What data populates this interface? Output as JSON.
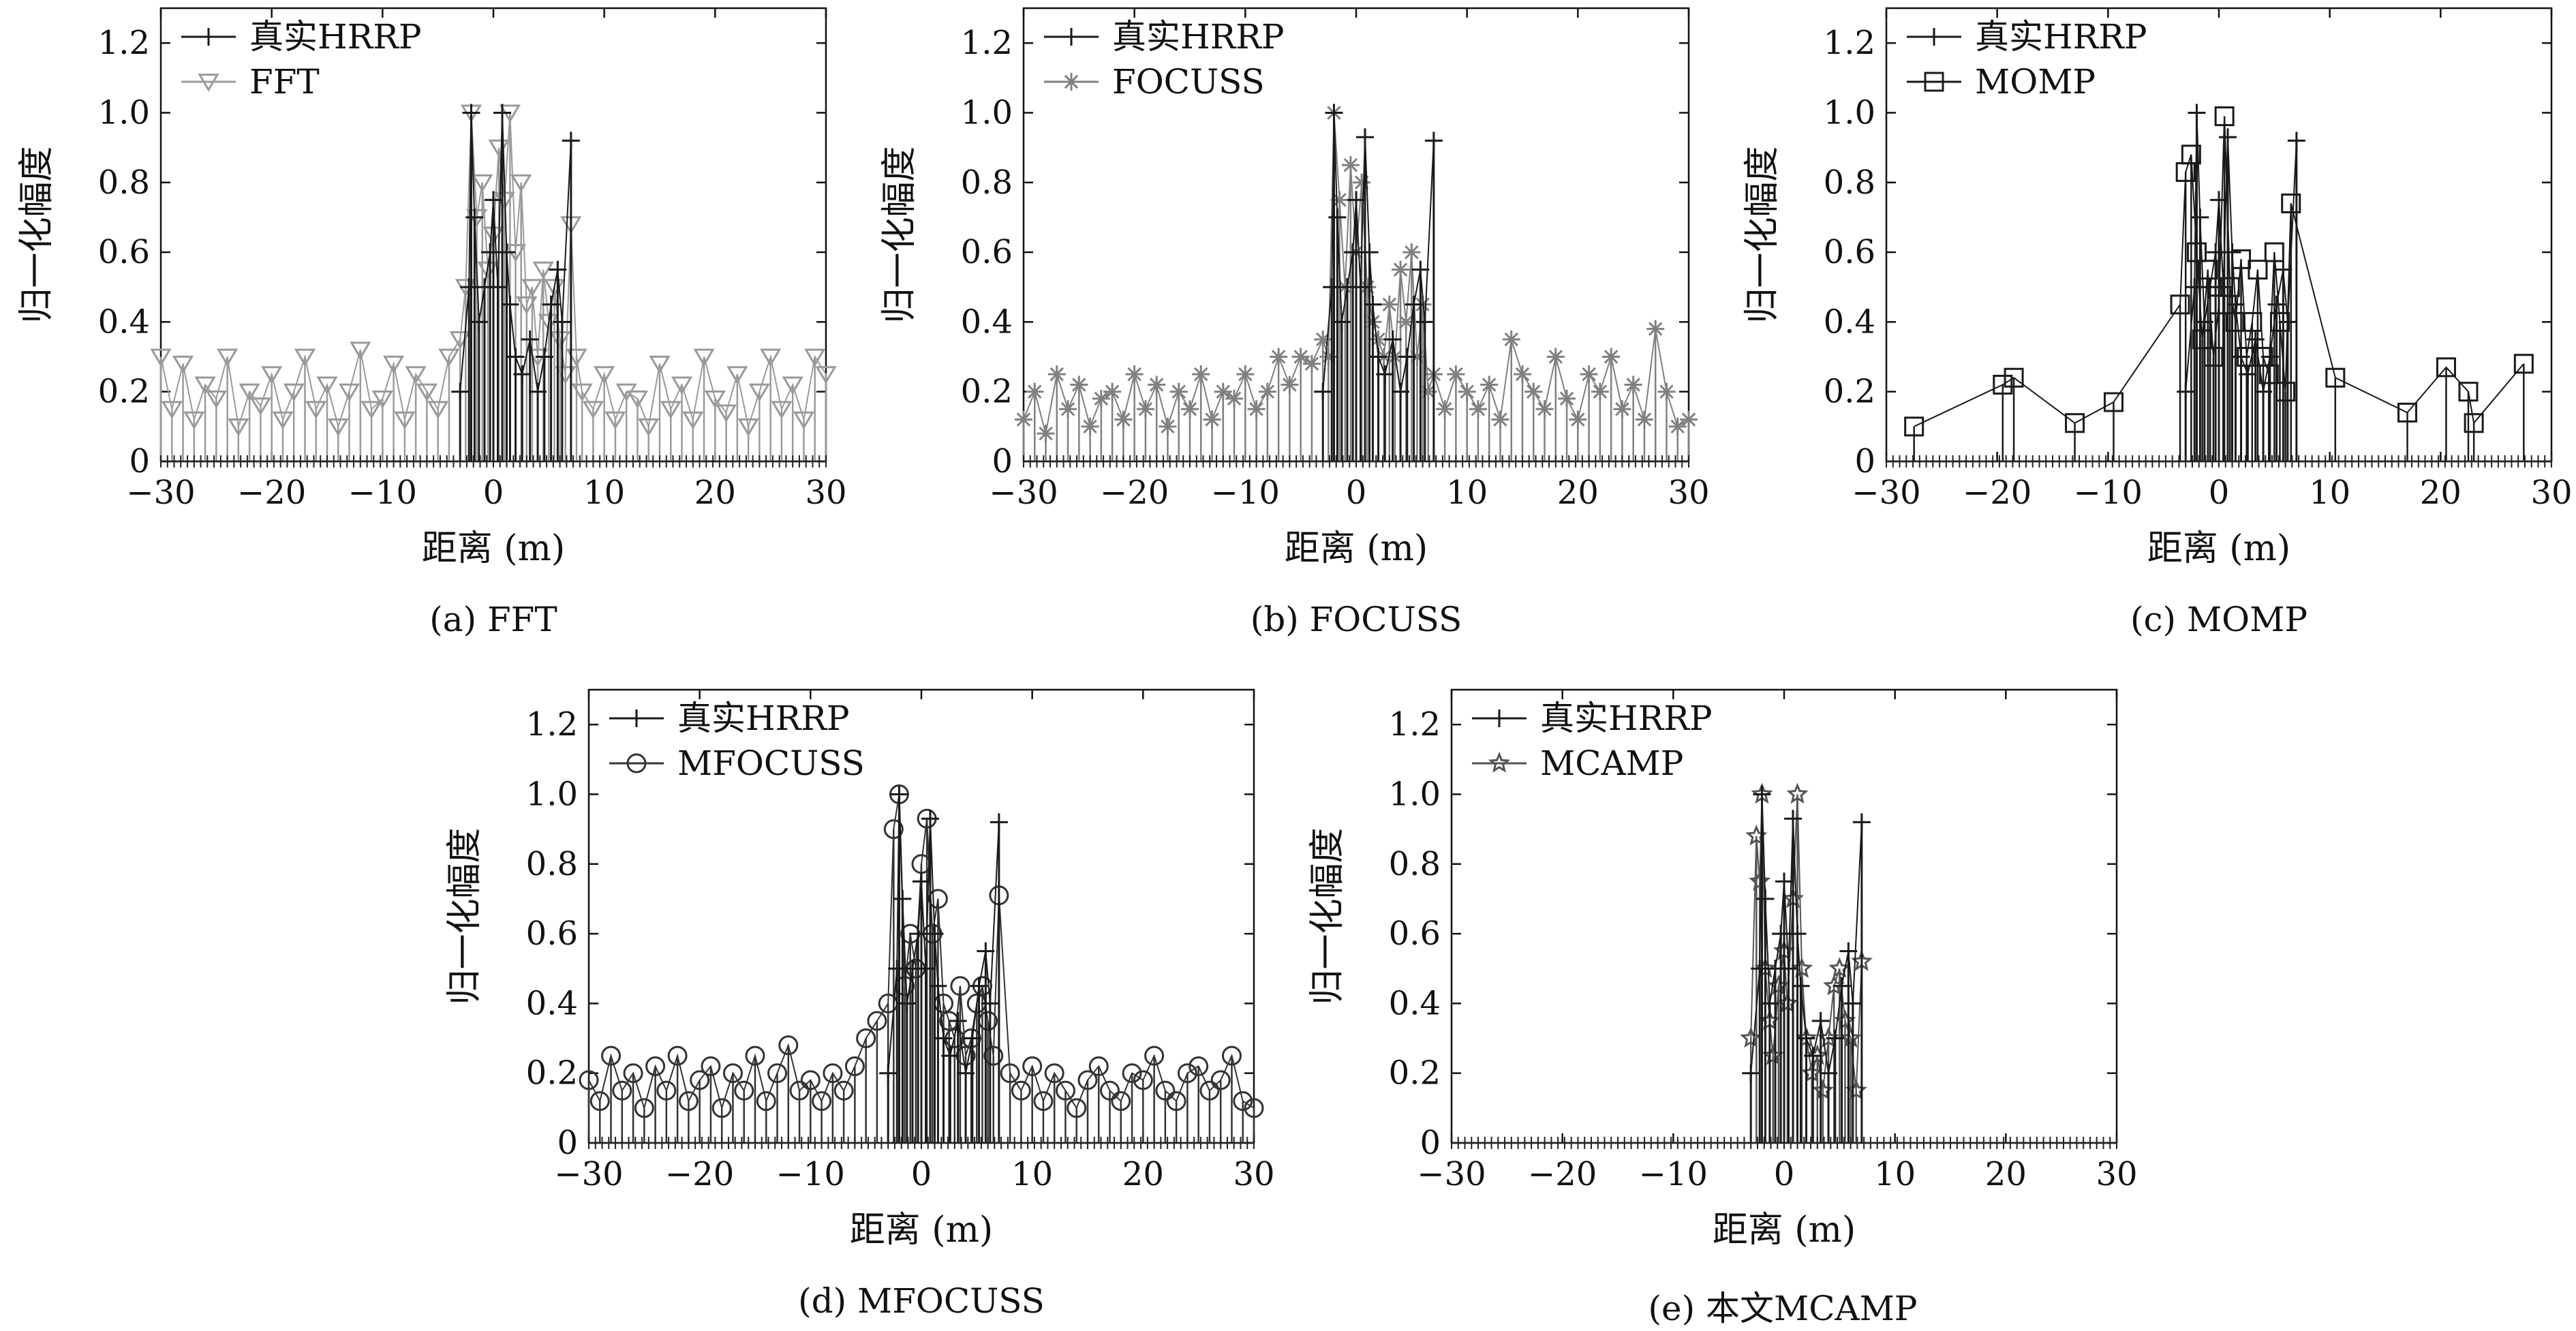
{
  "figure": {
    "captions": [
      "(a) FFT",
      "(b) FOCUSS",
      "(c) MOMP",
      "(d) MFOCUSS",
      "(e) 本文MCAMP"
    ]
  },
  "colors": {
    "true_hrrp": "#1a1a1a",
    "fft": "#9a9a9a",
    "focuss": "#808080",
    "momp": "#1a1a1a",
    "mfocuss": "#333333",
    "mcamp": "#555555"
  },
  "chart_data": [
    {
      "type": "line",
      "caption": "(a) FFT",
      "xlabel": "距离 (m)",
      "ylabel": "归一化幅度",
      "xlim": [
        -30,
        30
      ],
      "ylim": [
        0,
        1.3
      ],
      "xticks": [
        -30,
        -20,
        -10,
        0,
        10,
        20,
        30
      ],
      "xtick_labels": [
        "−30",
        "−20",
        "−10",
        "0",
        "10",
        "20",
        "30"
      ],
      "yticks": [
        0,
        0.2,
        0.4,
        0.6,
        0.8,
        1.0,
        1.2
      ],
      "ytick_labels": [
        "0",
        "0.2",
        "0.4",
        "0.6",
        "0.8",
        "1.0",
        "1.2"
      ],
      "legend": "top-left",
      "grid": false,
      "series": [
        {
          "name": "真实HRRP",
          "marker": "plus",
          "x": [
            -3,
            -2.2,
            -2,
            -1.7,
            -1.3,
            -0.8,
            -0.3,
            0,
            0.4,
            0.8,
            1.2,
            1.5,
            2,
            2.6,
            3.3,
            4,
            4.6,
            5.2,
            5.8,
            6.2,
            7
          ],
          "y": [
            0.2,
            0.5,
            1.0,
            0.7,
            0.4,
            0.5,
            0.6,
            0.75,
            0.5,
            1.0,
            0.6,
            0.45,
            0.3,
            0.25,
            0.35,
            0.2,
            0.3,
            0.45,
            0.55,
            0.4,
            0.92
          ]
        },
        {
          "name": "FFT",
          "marker": "triangle-down",
          "x": [
            -30,
            -29,
            -28,
            -27,
            -26,
            -25,
            -24,
            -23,
            -22,
            -21,
            -20,
            -19,
            -18,
            -17,
            -16,
            -15,
            -14,
            -13,
            -12,
            -11,
            -10,
            -9,
            -8,
            -7,
            -6,
            -5,
            -4,
            -3,
            -2.5,
            -2,
            -1.5,
            -1,
            -0.5,
            0,
            0.5,
            1,
            1.5,
            2,
            2.5,
            3,
            3.5,
            4,
            4.5,
            5,
            5.5,
            6,
            6.5,
            7,
            7.5,
            8,
            9,
            10,
            11,
            12,
            13,
            14,
            15,
            16,
            17,
            18,
            19,
            20,
            21,
            22,
            23,
            24,
            25,
            26,
            27,
            28,
            29,
            30
          ],
          "y": [
            0.3,
            0.15,
            0.28,
            0.12,
            0.22,
            0.18,
            0.3,
            0.1,
            0.2,
            0.16,
            0.25,
            0.12,
            0.2,
            0.3,
            0.15,
            0.22,
            0.1,
            0.2,
            0.32,
            0.15,
            0.18,
            0.28,
            0.12,
            0.25,
            0.2,
            0.15,
            0.3,
            0.35,
            0.5,
            1.0,
            0.7,
            0.8,
            0.55,
            0.65,
            0.9,
            0.75,
            1.0,
            0.6,
            0.8,
            0.45,
            0.5,
            0.3,
            0.55,
            0.4,
            0.5,
            0.35,
            0.25,
            0.68,
            0.3,
            0.2,
            0.15,
            0.25,
            0.12,
            0.2,
            0.18,
            0.1,
            0.28,
            0.15,
            0.22,
            0.12,
            0.3,
            0.18,
            0.14,
            0.25,
            0.1,
            0.2,
            0.3,
            0.15,
            0.22,
            0.12,
            0.3,
            0.25
          ]
        }
      ]
    },
    {
      "type": "line",
      "caption": "(b) FOCUSS",
      "xlabel": "距离 (m)",
      "ylabel": "归一化幅度",
      "xlim": [
        -30,
        30
      ],
      "ylim": [
        0,
        1.3
      ],
      "xticks": [
        -30,
        -20,
        -10,
        0,
        10,
        20,
        30
      ],
      "xtick_labels": [
        "−30",
        "−20",
        "−10",
        "0",
        "10",
        "20",
        "30"
      ],
      "yticks": [
        0,
        0.2,
        0.4,
        0.6,
        0.8,
        1.0,
        1.2
      ],
      "ytick_labels": [
        "0",
        "0.2",
        "0.4",
        "0.6",
        "0.8",
        "1.0",
        "1.2"
      ],
      "legend": "top-left",
      "grid": false,
      "series": [
        {
          "name": "真实HRRP",
          "marker": "plus",
          "x": [
            -3,
            -2.2,
            -2,
            -1.7,
            -1.3,
            -0.8,
            -0.3,
            0,
            0.4,
            0.8,
            1.2,
            1.5,
            2,
            2.6,
            3.3,
            4,
            4.6,
            5.2,
            5.8,
            6.2,
            7
          ],
          "y": [
            0.2,
            0.5,
            1.0,
            0.7,
            0.4,
            0.5,
            0.6,
            0.75,
            0.5,
            0.93,
            0.6,
            0.45,
            0.3,
            0.25,
            0.35,
            0.2,
            0.3,
            0.45,
            0.55,
            0.4,
            0.92
          ]
        },
        {
          "name": "FOCUSS",
          "marker": "asterisk",
          "x": [
            -30,
            -29,
            -28,
            -27,
            -26,
            -25,
            -24,
            -23,
            -22,
            -21,
            -20,
            -19,
            -18,
            -17,
            -16,
            -15,
            -14,
            -13,
            -12,
            -11,
            -10,
            -9,
            -8,
            -7,
            -6,
            -5,
            -4,
            -3,
            -2.5,
            -2,
            -1.5,
            -1,
            -0.5,
            0,
            0.5,
            1,
            1.5,
            2,
            2.5,
            3,
            3.5,
            4,
            4.5,
            5,
            5.5,
            6,
            6.5,
            7,
            8,
            9,
            10,
            11,
            12,
            13,
            14,
            15,
            16,
            17,
            18,
            19,
            20,
            21,
            22,
            23,
            24,
            25,
            26,
            27,
            28,
            29,
            30
          ],
          "y": [
            0.12,
            0.2,
            0.08,
            0.25,
            0.15,
            0.22,
            0.1,
            0.18,
            0.2,
            0.12,
            0.25,
            0.15,
            0.22,
            0.1,
            0.2,
            0.15,
            0.25,
            0.12,
            0.2,
            0.18,
            0.25,
            0.15,
            0.2,
            0.3,
            0.22,
            0.3,
            0.28,
            0.35,
            0.3,
            1.0,
            0.75,
            0.5,
            0.85,
            0.6,
            0.8,
            0.5,
            0.4,
            0.35,
            0.3,
            0.45,
            0.3,
            0.55,
            0.4,
            0.6,
            0.3,
            0.45,
            0.2,
            0.25,
            0.15,
            0.25,
            0.2,
            0.15,
            0.22,
            0.12,
            0.35,
            0.25,
            0.2,
            0.15,
            0.3,
            0.18,
            0.12,
            0.25,
            0.2,
            0.3,
            0.15,
            0.22,
            0.12,
            0.38,
            0.2,
            0.1,
            0.12
          ]
        }
      ]
    },
    {
      "type": "line",
      "caption": "(c) MOMP",
      "xlabel": "距离 (m)",
      "ylabel": "归一化幅度",
      "xlim": [
        -30,
        30
      ],
      "ylim": [
        0,
        1.3
      ],
      "xticks": [
        -30,
        -20,
        -10,
        0,
        10,
        20,
        30
      ],
      "xtick_labels": [
        "−30",
        "−20",
        "−10",
        "0",
        "10",
        "20",
        "30"
      ],
      "yticks": [
        0,
        0.2,
        0.4,
        0.6,
        0.8,
        1.0,
        1.2
      ],
      "ytick_labels": [
        "0",
        "0.2",
        "0.4",
        "0.6",
        "0.8",
        "1.0",
        "1.2"
      ],
      "legend": "top-left",
      "grid": false,
      "series": [
        {
          "name": "真实HRRP",
          "marker": "plus",
          "x": [
            -3,
            -2.2,
            -2,
            -1.7,
            -1.3,
            -0.8,
            -0.3,
            0,
            0.4,
            0.8,
            1.2,
            1.5,
            2,
            2.6,
            3.3,
            4,
            4.6,
            5.2,
            5.8,
            6.2,
            7
          ],
          "y": [
            0.2,
            0.5,
            1.0,
            0.7,
            0.4,
            0.5,
            0.6,
            0.75,
            0.5,
            0.93,
            0.6,
            0.45,
            0.3,
            0.25,
            0.35,
            0.2,
            0.3,
            0.45,
            0.55,
            0.4,
            0.92
          ]
        },
        {
          "name": "MOMP",
          "marker": "square",
          "x": [
            -27.5,
            -19.5,
            -18.5,
            -13,
            -9.5,
            -3.5,
            -3,
            -2.5,
            -2,
            -1.5,
            -1,
            -0.5,
            0,
            0.5,
            1,
            1.5,
            2,
            2.5,
            3,
            3.5,
            4,
            4.5,
            5,
            5.5,
            6,
            6.5,
            10.5,
            17,
            20.5,
            22.5,
            23,
            27.5
          ],
          "y": [
            0.1,
            0.22,
            0.24,
            0.11,
            0.17,
            0.45,
            0.83,
            0.88,
            0.6,
            0.35,
            0.55,
            0.3,
            0.45,
            0.99,
            0.5,
            0.4,
            0.58,
            0.3,
            0.4,
            0.55,
            0.3,
            0.25,
            0.6,
            0.4,
            0.2,
            0.74,
            0.24,
            0.14,
            0.27,
            0.2,
            0.11,
            0.28
          ]
        }
      ]
    },
    {
      "type": "line",
      "caption": "(d) MFOCUSS",
      "xlabel": "距离 (m)",
      "ylabel": "归一化幅度",
      "xlim": [
        -30,
        30
      ],
      "ylim": [
        0,
        1.3
      ],
      "xticks": [
        -30,
        -20,
        -10,
        0,
        10,
        20,
        30
      ],
      "xtick_labels": [
        "−30",
        "−20",
        "−10",
        "0",
        "10",
        "20",
        "30"
      ],
      "yticks": [
        0,
        0.2,
        0.4,
        0.6,
        0.8,
        1.0,
        1.2
      ],
      "ytick_labels": [
        "0",
        "0.2",
        "0.4",
        "0.6",
        "0.8",
        "1.0",
        "1.2"
      ],
      "legend": "top-left",
      "grid": false,
      "series": [
        {
          "name": "真实HRRP",
          "marker": "plus",
          "x": [
            -3,
            -2.2,
            -2,
            -1.7,
            -1.3,
            -0.8,
            -0.3,
            0,
            0.4,
            0.8,
            1.2,
            1.5,
            2,
            2.6,
            3.3,
            4,
            4.6,
            5.2,
            5.8,
            6.2,
            7
          ],
          "y": [
            0.2,
            0.5,
            1.0,
            0.7,
            0.4,
            0.5,
            0.6,
            0.75,
            0.5,
            0.93,
            0.6,
            0.45,
            0.3,
            0.25,
            0.35,
            0.2,
            0.3,
            0.45,
            0.55,
            0.4,
            0.92
          ]
        },
        {
          "name": "MFOCUSS",
          "marker": "circle",
          "x": [
            -30,
            -29,
            -28,
            -27,
            -26,
            -25,
            -24,
            -23,
            -22,
            -21,
            -20,
            -19,
            -18,
            -17,
            -16,
            -15,
            -14,
            -13,
            -12,
            -11,
            -10,
            -9,
            -8,
            -7,
            -6,
            -5,
            -4,
            -3,
            -2.5,
            -2,
            -1.5,
            -1,
            -0.5,
            0,
            0.5,
            1,
            1.5,
            2,
            2.5,
            3,
            3.5,
            4,
            4.5,
            5,
            5.5,
            6,
            6.5,
            7,
            8,
            9,
            10,
            11,
            12,
            13,
            14,
            15,
            16,
            17,
            18,
            19,
            20,
            21,
            22,
            23,
            24,
            25,
            26,
            27,
            28,
            29,
            30
          ],
          "y": [
            0.18,
            0.12,
            0.25,
            0.15,
            0.2,
            0.1,
            0.22,
            0.15,
            0.25,
            0.12,
            0.18,
            0.22,
            0.1,
            0.2,
            0.15,
            0.25,
            0.12,
            0.2,
            0.28,
            0.15,
            0.18,
            0.12,
            0.2,
            0.15,
            0.22,
            0.3,
            0.35,
            0.4,
            0.9,
            1.0,
            0.45,
            0.6,
            0.5,
            0.8,
            0.93,
            0.6,
            0.7,
            0.4,
            0.35,
            0.3,
            0.45,
            0.25,
            0.3,
            0.4,
            0.45,
            0.35,
            0.25,
            0.71,
            0.2,
            0.15,
            0.22,
            0.12,
            0.2,
            0.15,
            0.1,
            0.18,
            0.22,
            0.15,
            0.12,
            0.2,
            0.18,
            0.25,
            0.15,
            0.12,
            0.2,
            0.22,
            0.15,
            0.18,
            0.25,
            0.12,
            0.1
          ]
        }
      ]
    },
    {
      "type": "line",
      "caption": "(e) 本文MCAMP",
      "xlabel": "距离 (m)",
      "ylabel": "归一化幅度",
      "xlim": [
        -30,
        30
      ],
      "ylim": [
        0,
        1.3
      ],
      "xticks": [
        -30,
        -20,
        -10,
        0,
        10,
        20,
        30
      ],
      "xtick_labels": [
        "−30",
        "−20",
        "−10",
        "0",
        "10",
        "20",
        "30"
      ],
      "yticks": [
        0,
        0.2,
        0.4,
        0.6,
        0.8,
        1.0,
        1.2
      ],
      "ytick_labels": [
        "0",
        "0.2",
        "0.4",
        "0.6",
        "0.8",
        "1.0",
        "1.2"
      ],
      "legend": "top-left",
      "grid": false,
      "series": [
        {
          "name": "真实HRRP",
          "marker": "plus",
          "x": [
            -3,
            -2.2,
            -2,
            -1.7,
            -1.3,
            -0.8,
            -0.3,
            0,
            0.4,
            0.8,
            1.2,
            1.5,
            2,
            2.6,
            3.3,
            4,
            4.6,
            5.2,
            5.8,
            6.2,
            7
          ],
          "y": [
            0.2,
            0.5,
            1.0,
            0.7,
            0.4,
            0.5,
            0.6,
            0.75,
            0.5,
            0.93,
            0.6,
            0.45,
            0.3,
            0.25,
            0.35,
            0.2,
            0.3,
            0.45,
            0.55,
            0.4,
            0.92
          ]
        },
        {
          "name": "MCAMP",
          "marker": "star",
          "x": [
            -3,
            -2.5,
            -2.2,
            -2,
            -1.7,
            -1.3,
            -1,
            -0.5,
            0,
            0.3,
            0.8,
            1.2,
            1.6,
            2,
            2.5,
            3,
            3.5,
            4,
            4.5,
            5,
            5.5,
            6,
            6.5,
            7
          ],
          "y": [
            0.3,
            0.88,
            0.75,
            1.0,
            0.5,
            0.35,
            0.25,
            0.45,
            0.55,
            0.4,
            0.7,
            1.0,
            0.5,
            0.3,
            0.2,
            0.25,
            0.15,
            0.3,
            0.45,
            0.5,
            0.35,
            0.3,
            0.15,
            0.52
          ]
        }
      ]
    }
  ]
}
